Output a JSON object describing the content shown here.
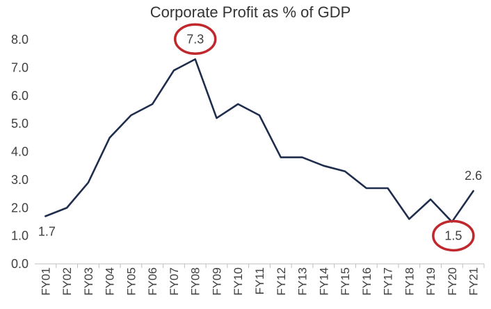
{
  "chart_data": {
    "type": "line",
    "title": "Corporate Profit as % of GDP",
    "xlabel": "",
    "ylabel": "",
    "categories": [
      "FY01",
      "FY02",
      "FY03",
      "FY04",
      "FY05",
      "FY06",
      "FY07",
      "FY08",
      "FY09",
      "FY10",
      "FY11",
      "FY12",
      "FY13",
      "FY14",
      "FY15",
      "FY16",
      "FY17",
      "FY18",
      "FY19",
      "FY20",
      "FY21"
    ],
    "series": [
      {
        "values": [
          1.7,
          2.0,
          2.9,
          4.5,
          5.3,
          5.7,
          6.9,
          7.3,
          5.2,
          5.7,
          5.3,
          3.8,
          3.8,
          3.5,
          3.3,
          2.7,
          2.7,
          1.6,
          2.3,
          1.5,
          2.6
        ]
      }
    ],
    "ylim": [
      0,
      8
    ],
    "yticks": [
      "0.0",
      "1.0",
      "2.0",
      "3.0",
      "4.0",
      "5.0",
      "6.0",
      "7.0",
      "8.0"
    ],
    "grid": false,
    "data_labels": [
      {
        "category": "FY01",
        "text": "1.7"
      },
      {
        "category": "FY08",
        "text": "7.3"
      },
      {
        "category": "FY20",
        "text": "1.5"
      },
      {
        "category": "FY21",
        "text": "2.6"
      }
    ],
    "highlighted": [
      "FY08",
      "FY20"
    ],
    "colors": {
      "line": "#1f2d4d",
      "highlight": "#c0282d"
    }
  }
}
